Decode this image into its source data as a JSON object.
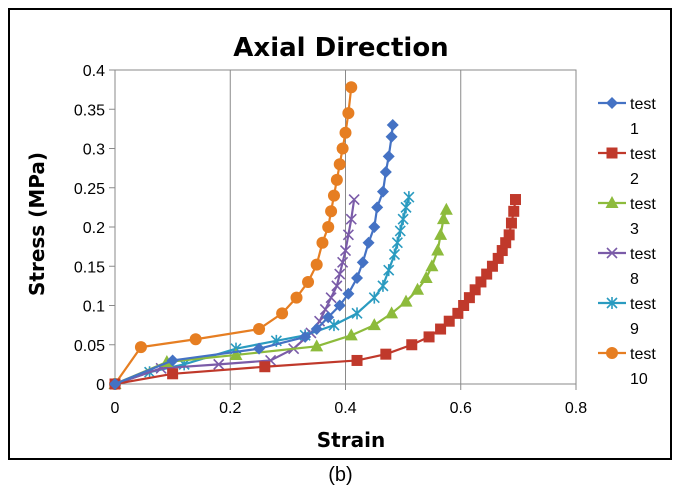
{
  "caption": "(b)",
  "chart_data": {
    "type": "scatter",
    "title": "Axial Direction",
    "xlabel": "Strain",
    "ylabel": "Stress (MPa)",
    "xlim": [
      0,
      0.8
    ],
    "ylim": [
      0,
      0.4
    ],
    "xticks": [
      "0",
      "0.2",
      "0.4",
      "0.6",
      "0.8"
    ],
    "yticks": [
      "0",
      "0.05",
      "0.1",
      "0.15",
      "0.2",
      "0.25",
      "0.3",
      "0.35",
      "0.4"
    ],
    "grid": "vertical",
    "legend_position": "right",
    "series": [
      {
        "name": "test 1",
        "label_lines": [
          "test",
          "1"
        ],
        "color": "#4472c4",
        "marker": "diamond",
        "x": [
          0,
          0.1,
          0.25,
          0.33,
          0.35,
          0.37,
          0.39,
          0.405,
          0.42,
          0.43,
          0.44,
          0.45,
          0.455,
          0.465,
          0.47,
          0.475,
          0.48,
          0.482
        ],
        "y": [
          0,
          0.03,
          0.045,
          0.06,
          0.07,
          0.085,
          0.1,
          0.115,
          0.135,
          0.155,
          0.18,
          0.2,
          0.225,
          0.245,
          0.27,
          0.29,
          0.315,
          0.33
        ]
      },
      {
        "name": "test 2",
        "label_lines": [
          "test",
          "2"
        ],
        "color": "#c0392b",
        "marker": "square",
        "x": [
          0,
          0.1,
          0.26,
          0.42,
          0.47,
          0.515,
          0.545,
          0.565,
          0.58,
          0.595,
          0.605,
          0.615,
          0.625,
          0.635,
          0.645,
          0.655,
          0.665,
          0.672,
          0.678,
          0.684,
          0.688,
          0.692,
          0.695
        ],
        "y": [
          0,
          0.013,
          0.022,
          0.03,
          0.038,
          0.05,
          0.06,
          0.07,
          0.08,
          0.09,
          0.1,
          0.11,
          0.12,
          0.13,
          0.14,
          0.15,
          0.16,
          0.17,
          0.18,
          0.19,
          0.205,
          0.22,
          0.235
        ]
      },
      {
        "name": "test 3",
        "label_lines": [
          "test",
          "3"
        ],
        "color": "#8dbb3c",
        "marker": "triangle",
        "x": [
          0,
          0.09,
          0.21,
          0.35,
          0.41,
          0.45,
          0.48,
          0.505,
          0.525,
          0.54,
          0.55,
          0.56,
          0.565,
          0.57,
          0.575
        ],
        "y": [
          0,
          0.028,
          0.037,
          0.048,
          0.062,
          0.075,
          0.09,
          0.105,
          0.12,
          0.135,
          0.15,
          0.17,
          0.19,
          0.21,
          0.222
        ]
      },
      {
        "name": "test 8",
        "label_lines": [
          "test",
          "8"
        ],
        "color": "#7a5ba8",
        "marker": "x",
        "x": [
          0,
          0.08,
          0.18,
          0.27,
          0.31,
          0.34,
          0.355,
          0.365,
          0.375,
          0.385,
          0.39,
          0.395,
          0.4,
          0.405,
          0.41,
          0.415
        ],
        "y": [
          0,
          0.02,
          0.025,
          0.03,
          0.045,
          0.065,
          0.08,
          0.095,
          0.11,
          0.125,
          0.14,
          0.155,
          0.17,
          0.19,
          0.21,
          0.235
        ]
      },
      {
        "name": "test 9",
        "label_lines": [
          "test",
          "9"
        ],
        "color": "#2a9bc0",
        "marker": "asterisk",
        "x": [
          0,
          0.06,
          0.12,
          0.21,
          0.28,
          0.33,
          0.38,
          0.42,
          0.45,
          0.465,
          0.475,
          0.485,
          0.49,
          0.495,
          0.5,
          0.505,
          0.51
        ],
        "y": [
          0,
          0.015,
          0.025,
          0.045,
          0.055,
          0.062,
          0.075,
          0.09,
          0.11,
          0.125,
          0.145,
          0.165,
          0.18,
          0.195,
          0.21,
          0.225,
          0.238
        ]
      },
      {
        "name": "test 10",
        "label_lines": [
          "test",
          "10"
        ],
        "color": "#e67e22",
        "marker": "circle",
        "x": [
          0,
          0.045,
          0.14,
          0.25,
          0.29,
          0.315,
          0.335,
          0.35,
          0.36,
          0.37,
          0.375,
          0.38,
          0.385,
          0.39,
          0.395,
          0.4,
          0.405,
          0.41
        ],
        "y": [
          0,
          0.047,
          0.057,
          0.07,
          0.09,
          0.11,
          0.13,
          0.152,
          0.18,
          0.2,
          0.22,
          0.24,
          0.26,
          0.28,
          0.3,
          0.32,
          0.345,
          0.378
        ]
      }
    ]
  }
}
